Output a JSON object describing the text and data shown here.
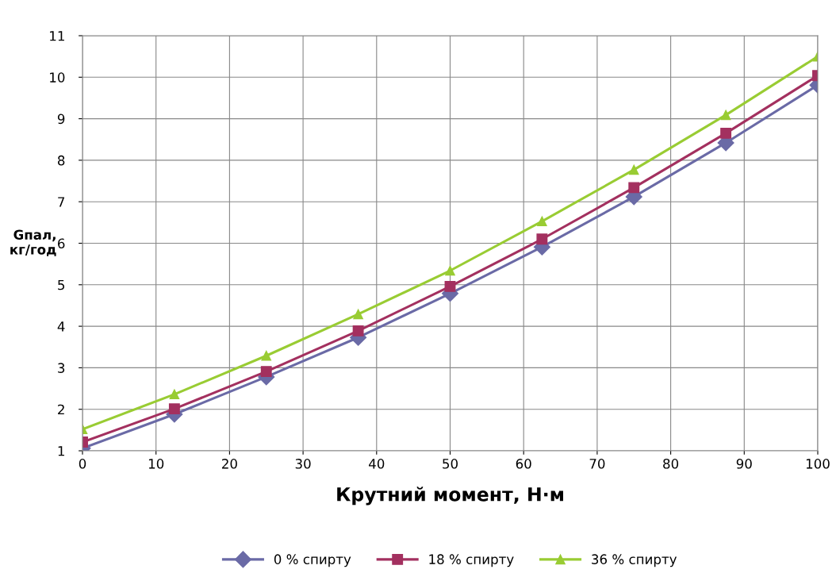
{
  "chart_data": {
    "type": "line",
    "xlabel": "Крутний момент, Н·м",
    "ylabel": "Gпал,\nкг/год",
    "x": [
      0,
      12.5,
      25,
      37.5,
      50,
      62.5,
      75,
      87.5,
      100
    ],
    "series": [
      {
        "name": "0 % спирту",
        "color": "#6a6aa6",
        "marker": "diamond",
        "values": [
          1.06,
          1.88,
          2.78,
          3.73,
          4.79,
          5.91,
          7.12,
          8.42,
          9.81
        ]
      },
      {
        "name": "18 % спирту",
        "color": "#a3305f",
        "marker": "square",
        "values": [
          1.21,
          2.01,
          2.91,
          3.89,
          4.96,
          6.1,
          7.34,
          8.65,
          10.04
        ]
      },
      {
        "name": "36 % спирту",
        "color": "#99cc33",
        "marker": "triangle",
        "values": [
          1.52,
          2.36,
          3.29,
          4.29,
          5.34,
          6.53,
          7.77,
          9.09,
          10.5
        ]
      }
    ],
    "xlim": [
      0,
      100
    ],
    "xticks": [
      0,
      10,
      20,
      30,
      40,
      50,
      60,
      70,
      80,
      90,
      100
    ],
    "ylim": [
      1,
      11
    ],
    "yticks": [
      1,
      2,
      3,
      4,
      5,
      6,
      7,
      8,
      9,
      10,
      11
    ],
    "grid": true,
    "legend": "bottom",
    "line_style": "solid"
  }
}
